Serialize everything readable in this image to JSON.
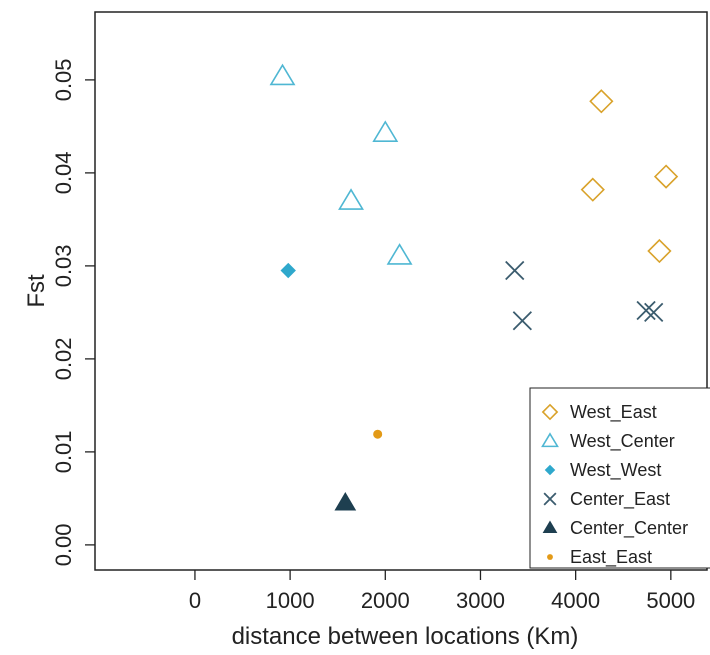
{
  "chart_data": {
    "type": "scatter",
    "title": "",
    "xlabel": "distance between locations (Km)",
    "ylabel": "Fst",
    "xlim": [
      -1050,
      5380
    ],
    "ylim": [
      -0.0027,
      0.0573
    ],
    "xticks": [
      0,
      1000,
      2000,
      3000,
      4000,
      5000
    ],
    "yticks": [
      0.0,
      0.01,
      0.02,
      0.03,
      0.04,
      0.05
    ],
    "ytick_labels": [
      "0.00",
      "0.01",
      "0.02",
      "0.03",
      "0.04",
      "0.05"
    ],
    "grid": false,
    "legend_position": "bottom-right",
    "series": [
      {
        "name": "West_East",
        "marker": "diamond-open",
        "color": "#D9A22A",
        "points": [
          [
            4270,
            0.0477
          ],
          [
            4180,
            0.0382
          ],
          [
            4950,
            0.0396
          ],
          [
            4880,
            0.0316
          ]
        ]
      },
      {
        "name": "West_Center",
        "marker": "triangle-open",
        "color": "#4FB7D3",
        "points": [
          [
            920,
            0.0504
          ],
          [
            2000,
            0.0443
          ],
          [
            1640,
            0.037
          ],
          [
            2150,
            0.0311
          ]
        ]
      },
      {
        "name": "West_West",
        "marker": "diamond-filled",
        "color": "#2FA8CC",
        "points": [
          [
            980,
            0.0295
          ]
        ]
      },
      {
        "name": "Center_East",
        "marker": "cross",
        "color": "#3B5C6E",
        "points": [
          [
            3360,
            0.0295
          ],
          [
            3440,
            0.0241
          ],
          [
            4740,
            0.0252
          ],
          [
            4820,
            0.025
          ]
        ]
      },
      {
        "name": "Center_Center",
        "marker": "triangle-filled",
        "color": "#1E3F50",
        "points": [
          [
            1580,
            0.0045
          ]
        ]
      },
      {
        "name": "East_East",
        "marker": "dot",
        "color": "#E39A17",
        "points": [
          [
            1920,
            0.0119
          ]
        ]
      }
    ]
  }
}
